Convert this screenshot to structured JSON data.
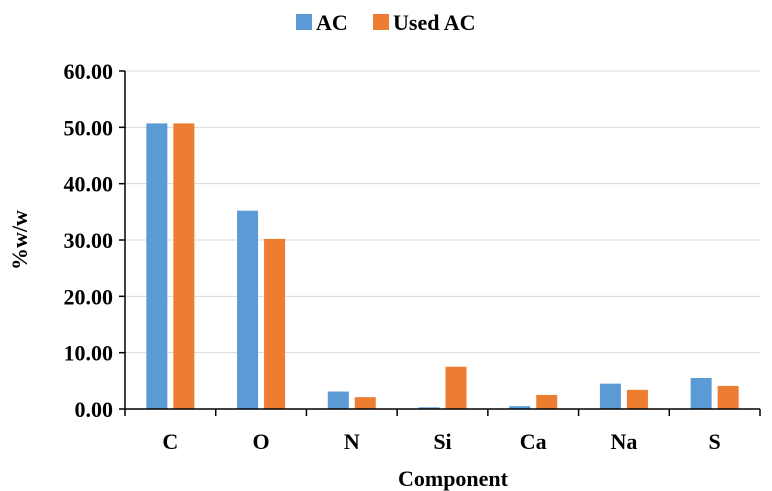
{
  "chart_data": {
    "type": "bar",
    "categories": [
      "C",
      "O",
      "N",
      "Si",
      "Ca",
      "Na",
      "S"
    ],
    "series": [
      {
        "name": "AC",
        "color": "#5b9bd5",
        "values": [
          50.7,
          35.2,
          3.1,
          0.3,
          0.5,
          4.5,
          5.5
        ]
      },
      {
        "name": "Used AC",
        "color": "#ed7d31",
        "values": [
          50.7,
          30.2,
          2.1,
          7.5,
          2.5,
          3.4,
          4.1
        ]
      }
    ],
    "title": "",
    "xlabel": "Component",
    "ylabel": "%w/w",
    "ylim": [
      0,
      60
    ],
    "yticks": [
      "0.00",
      "10.00",
      "20.00",
      "30.00",
      "40.00",
      "50.00",
      "60.00"
    ],
    "grid": true,
    "legend_position": "top"
  }
}
